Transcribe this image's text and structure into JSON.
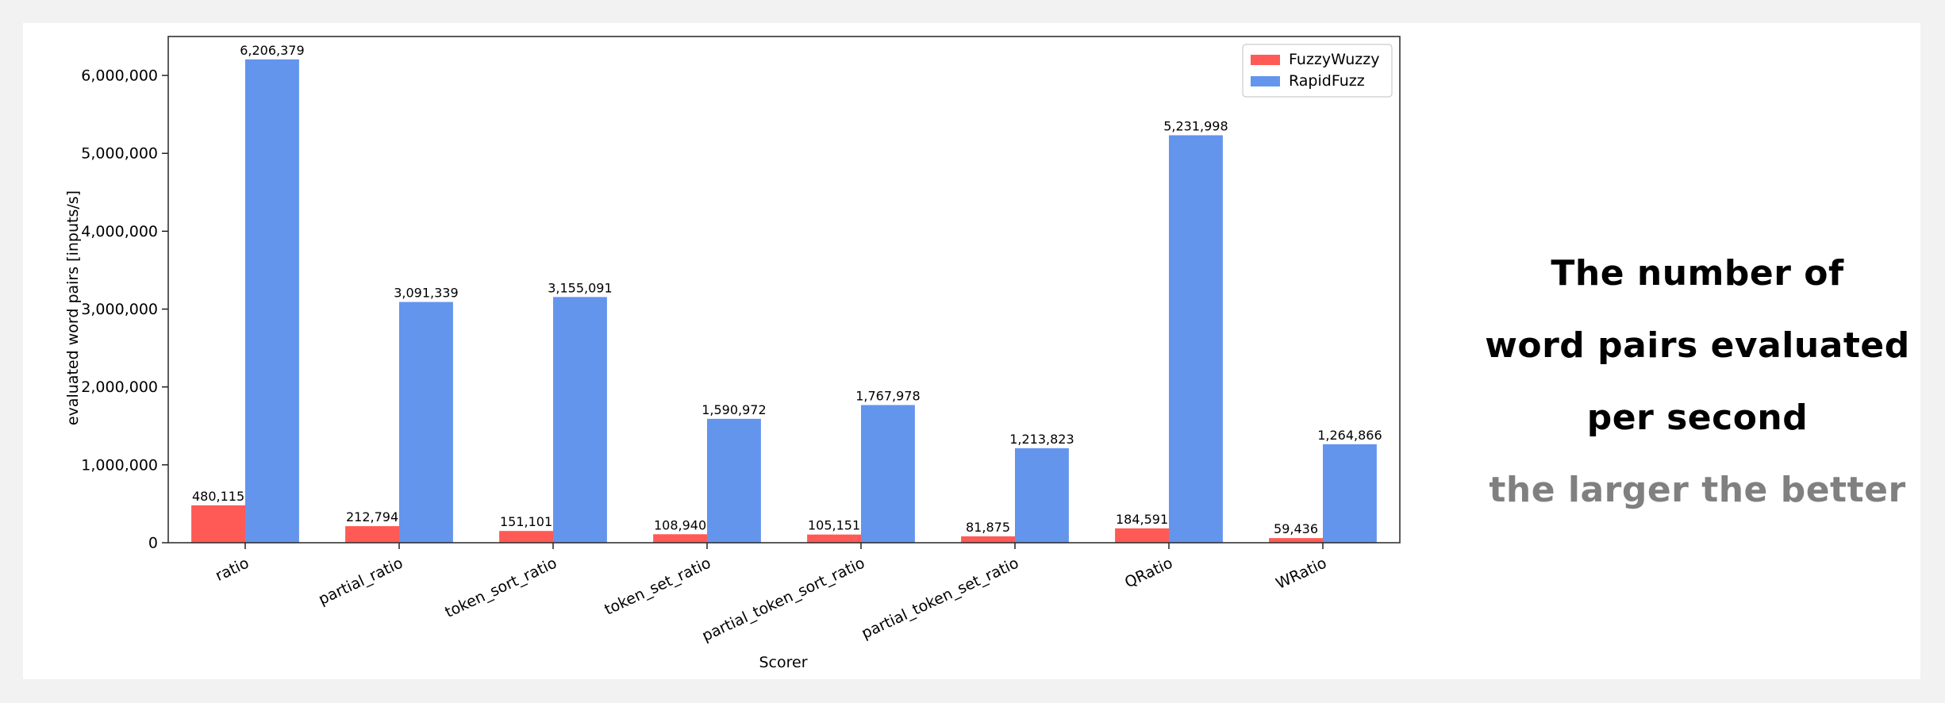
{
  "chart_data": {
    "type": "bar",
    "xlabel": "Scorer",
    "ylabel": "evaluated word pairs [inputs/s]",
    "categories": [
      "ratio",
      "partial_ratio",
      "token_sort_ratio",
      "token_set_ratio",
      "partial_token_sort_ratio",
      "partial_token_set_ratio",
      "QRatio",
      "WRatio"
    ],
    "series": [
      {
        "name": "FuzzyWuzzy",
        "color": "#ff5a55",
        "values": [
          480115,
          212794,
          151101,
          108940,
          105151,
          81875,
          184591,
          59436
        ],
        "labels": [
          "480,115",
          "212,794",
          "151,101",
          "108,940",
          "105,151",
          "81,875",
          "184,591",
          "59,436"
        ]
      },
      {
        "name": "RapidFuzz",
        "color": "#6495ed",
        "values": [
          6206379,
          3091339,
          3155091,
          1590972,
          1767978,
          1213823,
          5231998,
          1264866
        ],
        "labels": [
          "6,206,379",
          "3,091,339",
          "3,155,091",
          "1,590,972",
          "1,767,978",
          "1,213,823",
          "5,231,998",
          "1,264,866"
        ]
      }
    ],
    "ylim": [
      0,
      6500000
    ],
    "yticks": [
      0,
      1000000,
      2000000,
      3000000,
      4000000,
      5000000,
      6000000
    ],
    "ytick_labels": [
      "0",
      "1,000,000",
      "2,000,000",
      "3,000,000",
      "4,000,000",
      "5,000,000",
      "6,000,000"
    ],
    "grid": false,
    "legend_position": "top-right"
  },
  "caption": {
    "line1": "The number of",
    "line2": "word pairs evaluated",
    "line3": "per second",
    "line4": "the larger the better",
    "color_dark": "#000000",
    "color_gray": "#808080"
  }
}
